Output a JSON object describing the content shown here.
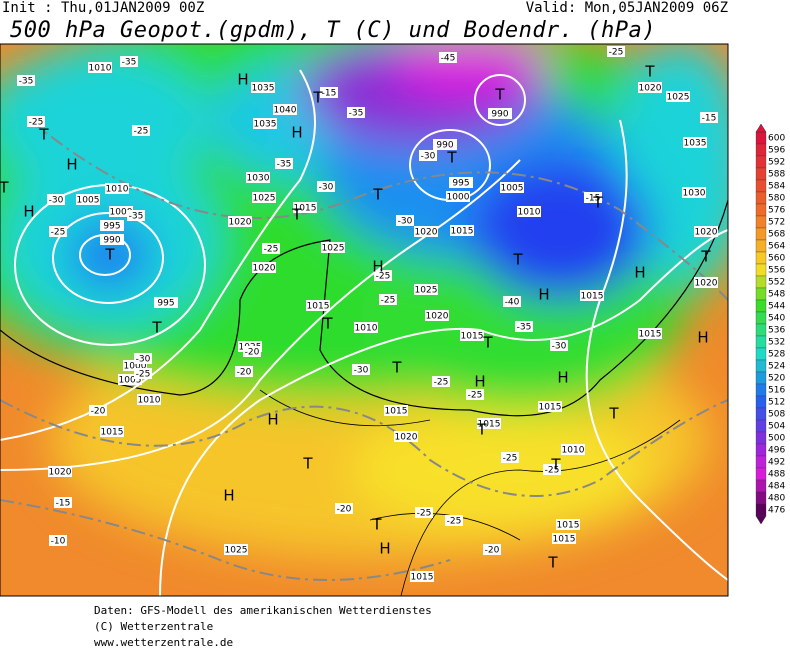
{
  "header": {
    "init": "Init : Thu,01JAN2009 00Z",
    "valid": "Valid: Mon,05JAN2009 06Z",
    "title": "500 hPa Geopot.(gpdm), T (C) und Bodendr. (hPa)"
  },
  "colorbar": {
    "levels": [
      600,
      596,
      592,
      588,
      584,
      580,
      576,
      572,
      568,
      564,
      560,
      556,
      552,
      548,
      544,
      540,
      536,
      532,
      528,
      524,
      520,
      516,
      512,
      508,
      504,
      500,
      496,
      492,
      488,
      484,
      480,
      476
    ]
  },
  "isobar_labels": [
    "1010",
    "1035",
    "1040",
    "1035",
    "1030",
    "1025",
    "1020",
    "1015",
    "1025",
    "1020",
    "1020",
    "1015",
    "1025",
    "1020",
    "1015",
    "1010",
    "1015",
    "1015",
    "1020",
    "1015",
    "1015",
    "1010",
    "1015",
    "1015",
    "1020",
    "1020",
    "1030",
    "1035",
    "1025",
    "1020",
    "1010",
    "1005",
    "1000",
    "995",
    "990",
    "990",
    "1010",
    "1005",
    "1000",
    "995",
    "990",
    "995",
    "1000",
    "1005",
    "1010",
    "1015",
    "1020",
    "1025",
    "1025",
    "1015",
    "1015",
    "1015"
  ],
  "temperature_labels": [
    "-35",
    "-25",
    "-35",
    "-30",
    "-25",
    "-35",
    "-25",
    "-15",
    "-35",
    "-35",
    "-30",
    "-30",
    "-30",
    "-25",
    "-25",
    "-40",
    "-35",
    "-30",
    "-25",
    "-30",
    "-25",
    "-20",
    "-20",
    "-25",
    "-30",
    "-25",
    "-20",
    "-15",
    "-10",
    "-20",
    "-25",
    "-25",
    "-20",
    "-25",
    "-25",
    "-45",
    "-25",
    "-15",
    "-15"
  ],
  "centers": [
    "H",
    "H",
    "H",
    "T",
    "T",
    "H",
    "T",
    "T",
    "T",
    "T",
    "T",
    "H",
    "T",
    "T",
    "T",
    "T",
    "T",
    "H",
    "T",
    "T",
    "H",
    "T",
    "H",
    "T",
    "H",
    "H",
    "T",
    "T",
    "T",
    "H",
    "T",
    "H",
    "T",
    "H",
    "T"
  ],
  "footer": {
    "source": "Daten: GFS-Modell des amerikanischen Wetterdienstes",
    "copyright": "(C) Wetterzentrale",
    "url": "www.wetterzentrale.de"
  }
}
